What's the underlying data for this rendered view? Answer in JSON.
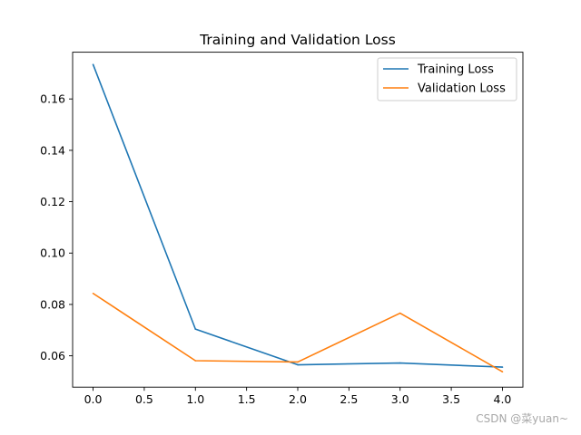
{
  "chart_data": {
    "type": "line",
    "title": "Training and Validation Loss",
    "xlabel": "",
    "ylabel": "",
    "x": [
      0,
      1,
      2,
      3,
      4
    ],
    "xlim": [
      -0.2,
      4.2
    ],
    "ylim": [
      0.0478,
      0.1782
    ],
    "xticks": [
      0.0,
      0.5,
      1.0,
      1.5,
      2.0,
      2.5,
      3.0,
      3.5,
      4.0
    ],
    "xtick_labels": [
      "0.0",
      "0.5",
      "1.0",
      "1.5",
      "2.0",
      "2.5",
      "3.0",
      "3.5",
      "4.0"
    ],
    "yticks": [
      0.06,
      0.08,
      0.1,
      0.12,
      0.14,
      0.16
    ],
    "ytick_labels": [
      "0.06",
      "0.08",
      "0.10",
      "0.12",
      "0.14",
      "0.16"
    ],
    "grid": false,
    "legend_position": "top-right",
    "series": [
      {
        "name": "Training Loss",
        "color": "#1f77b4",
        "values": [
          0.1734,
          0.0704,
          0.0565,
          0.0572,
          0.0556
        ]
      },
      {
        "name": "Validation Loss",
        "color": "#ff7f0e",
        "values": [
          0.0843,
          0.0581,
          0.0576,
          0.0766,
          0.0538
        ]
      }
    ]
  },
  "watermark": "CSDN @菜yuan~"
}
